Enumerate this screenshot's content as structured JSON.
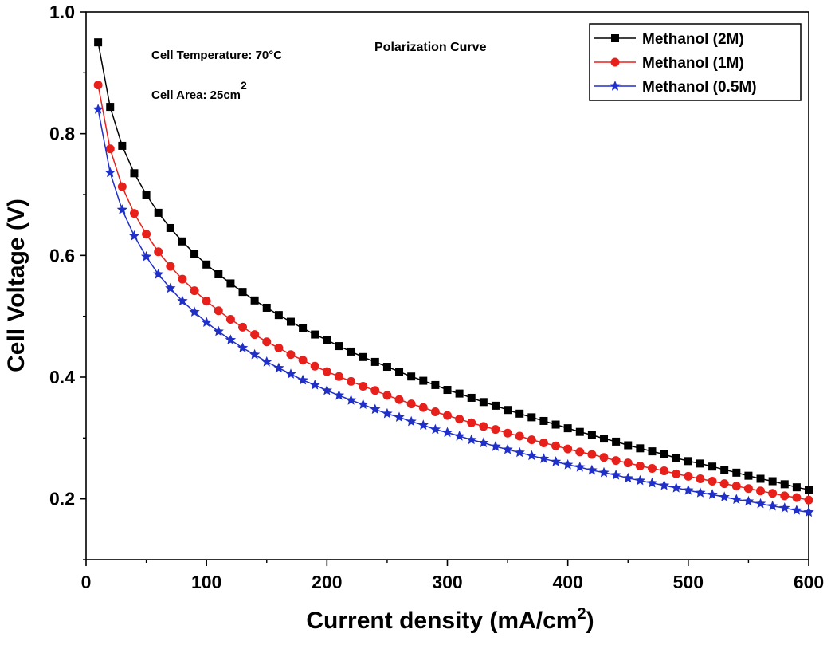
{
  "chart_data": {
    "type": "line",
    "title": "Polarization Curve",
    "annotations": [
      "Cell Temperature: 70°C",
      "Cell Area: 25cm",
      "2"
    ],
    "xlabel": "Current density (mA/cm",
    "xlabel_sup": "2",
    "xlabel_end": ")",
    "ylabel": "Cell Voltage (V)",
    "xlim": [
      0,
      600
    ],
    "ylim": [
      0.1,
      1.0
    ],
    "xticks": [
      0,
      100,
      200,
      300,
      400,
      500,
      600
    ],
    "yticks": [
      0.2,
      0.4,
      0.6,
      0.8,
      1.0
    ],
    "ytick_labels": [
      "0.2",
      "0.4",
      "0.6",
      "0.8",
      "1.0"
    ],
    "grid": false,
    "legend_position": "top-right",
    "x": [
      10,
      20,
      30,
      40,
      50,
      60,
      70,
      80,
      90,
      100,
      110,
      120,
      130,
      140,
      150,
      160,
      170,
      180,
      190,
      200,
      210,
      220,
      230,
      240,
      250,
      260,
      270,
      280,
      290,
      300,
      310,
      320,
      330,
      340,
      350,
      360,
      370,
      380,
      390,
      400,
      410,
      420,
      430,
      440,
      450,
      460,
      470,
      480,
      490,
      500,
      510,
      520,
      530,
      540,
      550,
      560,
      570,
      580,
      590,
      600
    ],
    "series": [
      {
        "name": "Methanol (2M)",
        "color": "#000000",
        "marker": "square",
        "values": [
          0.95,
          0.844,
          0.78,
          0.735,
          0.7,
          0.67,
          0.645,
          0.623,
          0.603,
          0.585,
          0.569,
          0.554,
          0.54,
          0.526,
          0.514,
          0.502,
          0.491,
          0.48,
          0.47,
          0.461,
          0.451,
          0.442,
          0.433,
          0.425,
          0.417,
          0.409,
          0.401,
          0.394,
          0.387,
          0.379,
          0.373,
          0.366,
          0.359,
          0.353,
          0.346,
          0.34,
          0.334,
          0.328,
          0.322,
          0.316,
          0.31,
          0.305,
          0.299,
          0.294,
          0.288,
          0.283,
          0.278,
          0.273,
          0.267,
          0.262,
          0.258,
          0.253,
          0.248,
          0.243,
          0.238,
          0.233,
          0.229,
          0.224,
          0.219,
          0.215
        ]
      },
      {
        "name": "Methanol (1M)",
        "color": "#e8201c",
        "marker": "circle",
        "values": [
          0.88,
          0.775,
          0.713,
          0.669,
          0.635,
          0.606,
          0.582,
          0.561,
          0.542,
          0.525,
          0.509,
          0.495,
          0.482,
          0.47,
          0.458,
          0.448,
          0.437,
          0.428,
          0.418,
          0.409,
          0.401,
          0.393,
          0.385,
          0.378,
          0.37,
          0.363,
          0.356,
          0.35,
          0.343,
          0.337,
          0.331,
          0.325,
          0.319,
          0.314,
          0.308,
          0.303,
          0.297,
          0.292,
          0.287,
          0.282,
          0.277,
          0.273,
          0.268,
          0.263,
          0.259,
          0.254,
          0.25,
          0.246,
          0.241,
          0.237,
          0.233,
          0.229,
          0.225,
          0.221,
          0.217,
          0.213,
          0.209,
          0.205,
          0.202,
          0.198
        ]
      },
      {
        "name": "Methanol (0.5M)",
        "color": "#1f2fc8",
        "marker": "star",
        "values": [
          0.84,
          0.736,
          0.675,
          0.632,
          0.598,
          0.569,
          0.546,
          0.525,
          0.507,
          0.49,
          0.475,
          0.461,
          0.448,
          0.437,
          0.425,
          0.415,
          0.405,
          0.395,
          0.387,
          0.378,
          0.37,
          0.362,
          0.355,
          0.347,
          0.34,
          0.334,
          0.327,
          0.321,
          0.314,
          0.309,
          0.303,
          0.297,
          0.292,
          0.286,
          0.281,
          0.276,
          0.271,
          0.266,
          0.261,
          0.256,
          0.252,
          0.247,
          0.243,
          0.239,
          0.234,
          0.23,
          0.226,
          0.222,
          0.218,
          0.214,
          0.21,
          0.207,
          0.203,
          0.199,
          0.196,
          0.192,
          0.188,
          0.185,
          0.181,
          0.178
        ]
      }
    ]
  }
}
